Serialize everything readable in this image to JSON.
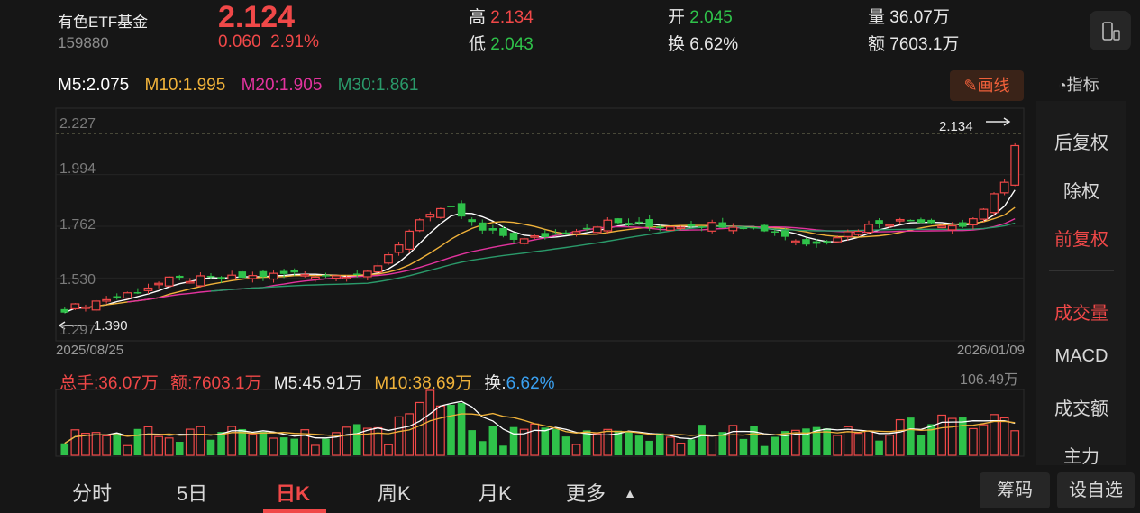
{
  "header": {
    "name": "有色ETF基金",
    "code": "159880",
    "price": "2.124",
    "change": "0.060",
    "change_pct": "2.91%",
    "quotes": [
      {
        "label": "高",
        "value": "2.134",
        "color": "red"
      },
      {
        "label": "低",
        "value": "2.043",
        "color": "green"
      },
      {
        "label": "开",
        "value": "2.045",
        "color": "green"
      },
      {
        "label": "换",
        "value": "6.62%",
        "color": "white"
      },
      {
        "label": "量",
        "value": "36.07万",
        "color": "white"
      },
      {
        "label": "额",
        "value": "7603.1万",
        "color": "white"
      }
    ],
    "device_icon": "phone-rotate-icon"
  },
  "ma": {
    "m5": "M5:2.075",
    "m10": "M10:1.995",
    "m20": "M20:1.905",
    "m30": "M30:1.861",
    "colors": {
      "m5": "#ffffff",
      "m10": "#f0b23a",
      "m20": "#e2339e",
      "m30": "#2a9a6a"
    }
  },
  "draw_button": "画线",
  "indicator_button": "指标",
  "sidebar": {
    "items": [
      "后复权",
      "除权",
      "前复权",
      "成交量",
      "MACD",
      "成交额",
      "主力"
    ],
    "active": [
      "前复权",
      "成交量"
    ]
  },
  "chart_data": {
    "type": "candlestick",
    "y_ticks": [
      "2.227",
      "1.994",
      "1.762",
      "1.530",
      "1.297"
    ],
    "ylim": [
      1.297,
      2.227
    ],
    "x_start": "2025/08/25",
    "x_end": "2026/01/09",
    "max_label": "2.134",
    "min_label": "1.390",
    "max_value": 2.134,
    "min_value": 1.39
  },
  "volume": {
    "total": "总手:36.07万",
    "amount": "额:7603.1万",
    "m5": "M5:45.91万",
    "m10": "M10:38.69万",
    "turnover_label": "换:",
    "turnover_value": "6.62%",
    "max_label": "106.49万"
  },
  "tabs": [
    "分时",
    "5日",
    "日K",
    "周K",
    "月K",
    "更多"
  ],
  "active_tab": "日K",
  "bottom_buttons": [
    "筹码",
    "设自选"
  ]
}
